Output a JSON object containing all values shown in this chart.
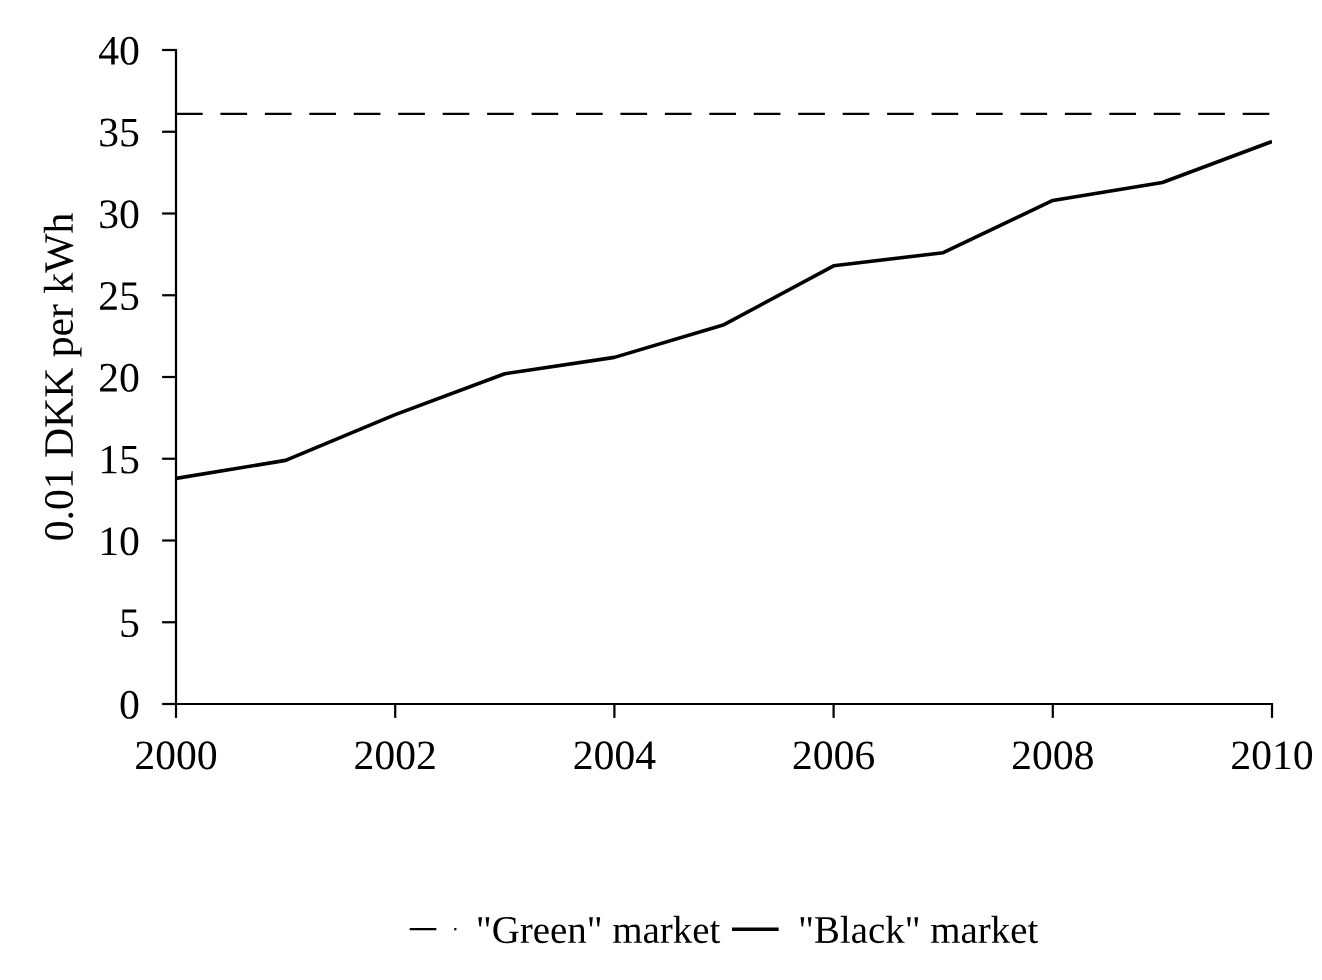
{
  "chart_data": {
    "type": "line",
    "ylabel": "0.01 DKK per kWh",
    "x": [
      2000,
      2001,
      2002,
      2003,
      2004,
      2005,
      2006,
      2007,
      2008,
      2009,
      2010
    ],
    "series": [
      {
        "name": "\"Green\" market",
        "color": "#000000",
        "line_style": "dashed",
        "values": [
          36.1,
          36.1,
          36.1,
          36.1,
          36.1,
          36.1,
          36.1,
          36.1,
          36.1,
          36.1,
          36.1
        ]
      },
      {
        "name": "\"Black\" market",
        "color": "#000000",
        "line_style": "solid",
        "values": [
          13.8,
          14.9,
          17.7,
          20.2,
          21.2,
          23.2,
          26.8,
          27.6,
          30.8,
          31.9,
          34.4
        ]
      }
    ],
    "xlim": [
      2000,
      2010
    ],
    "xticks": [
      2000,
      2002,
      2004,
      2006,
      2008,
      2010
    ],
    "ylim": [
      0,
      40
    ],
    "yticks": [
      0,
      5,
      10,
      15,
      20,
      25,
      30,
      35,
      40
    ],
    "grid": false,
    "legend": "bottom",
    "marker": "none"
  }
}
